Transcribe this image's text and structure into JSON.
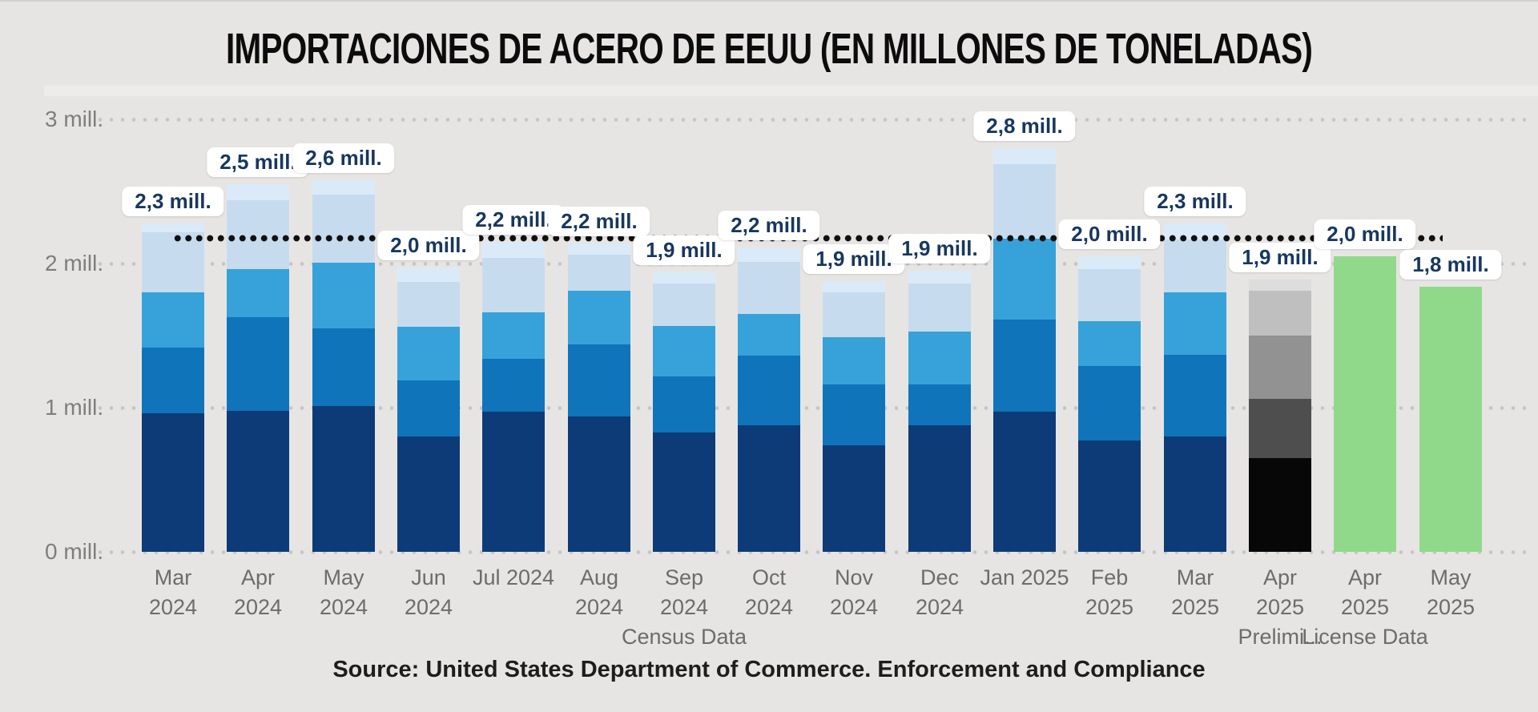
{
  "title": "IMPORTACIONES DE ACERO DE EEUU (EN MILLONES DE TONELADAS)",
  "source": "Source: United States Department of Commerce. Enforcement and Compliance",
  "y_axis": {
    "labels": [
      "3 mill.",
      "2 mill.",
      "1 mill.",
      "0 mill."
    ]
  },
  "colors": {
    "background": "#e7e5e3",
    "title_text": "#0c0c0c",
    "axis_text": "#7f7e7c",
    "x_label_text": "#6d6c6a",
    "pill_text": "#17375e",
    "pill_background": "#ffffff",
    "reference_line": "#101010",
    "gridline": "#c7c5c3"
  },
  "chart_data": {
    "type": "bar",
    "stacked": true,
    "unit": "millones de toneladas",
    "title": "IMPORTACIONES DE ACERO DE EEUU (EN MILLONES DE TONELADAS)",
    "ylim": [
      0,
      3
    ],
    "y_ticks": [
      "0 mill.",
      "1 mill.",
      "2 mill.",
      "3 mill."
    ],
    "grid": "dotted-horizontal",
    "legend": "none",
    "reference_line": {
      "value": 2.18,
      "style": "dotted",
      "color": "#101010"
    },
    "palettes": {
      "blue": [
        "#0d3b77",
        "#0f74ba",
        "#36a2d9",
        "#c6dcee",
        "#daeaf8"
      ],
      "gray": [
        "#070707",
        "#4e4e4e",
        "#929292",
        "#c0bfbf",
        "#dedddd"
      ],
      "green": [
        "#90d98b"
      ]
    },
    "bars": [
      {
        "label_lines": [
          "Mar",
          "2024"
        ],
        "total": 2.3,
        "total_label": "2,3 mill.",
        "palette": "blue",
        "segments": [
          0.96,
          0.46,
          0.38,
          0.42,
          0.06
        ]
      },
      {
        "label_lines": [
          "Apr",
          "2024"
        ],
        "total": 2.5,
        "total_label": "2,5 mill.",
        "palette": "blue",
        "segments": [
          0.98,
          0.65,
          0.33,
          0.48,
          0.11
        ]
      },
      {
        "label_lines": [
          "May",
          "2024"
        ],
        "total": 2.6,
        "total_label": "2,6 mill.",
        "palette": "blue",
        "segments": [
          1.01,
          0.54,
          0.46,
          0.47,
          0.1
        ]
      },
      {
        "label_lines": [
          "Jun",
          "2024"
        ],
        "total": 2.0,
        "total_label": "2,0 mill.",
        "palette": "blue",
        "segments": [
          0.8,
          0.39,
          0.37,
          0.31,
          0.1
        ]
      },
      {
        "label_lines": [
          "Jul 2024"
        ],
        "total": 2.2,
        "total_label": "2,2 mill.",
        "palette": "blue",
        "segments": [
          0.97,
          0.37,
          0.32,
          0.38,
          0.11
        ]
      },
      {
        "label_lines": [
          "Aug",
          "2024"
        ],
        "total": 2.2,
        "total_label": "2,2 mill.",
        "palette": "blue",
        "segments": [
          0.94,
          0.5,
          0.37,
          0.25,
          0.08
        ]
      },
      {
        "label_lines": [
          "Sep",
          "2024",
          "Census Data"
        ],
        "total": 1.9,
        "total_label": "1,9 mill.",
        "palette": "blue",
        "segments": [
          0.83,
          0.39,
          0.35,
          0.29,
          0.08
        ]
      },
      {
        "label_lines": [
          "Oct",
          "2024"
        ],
        "total": 2.2,
        "total_label": "2,2 mill.",
        "palette": "blue",
        "segments": [
          0.88,
          0.48,
          0.29,
          0.36,
          0.1
        ]
      },
      {
        "label_lines": [
          "Nov",
          "2024"
        ],
        "total": 1.9,
        "total_label": "1,9 mill.",
        "palette": "blue",
        "segments": [
          0.74,
          0.42,
          0.33,
          0.31,
          0.08
        ]
      },
      {
        "label_lines": [
          "Dec",
          "2024"
        ],
        "total": 1.9,
        "total_label": "1,9 mill.",
        "palette": "blue",
        "segments": [
          0.88,
          0.28,
          0.37,
          0.33,
          0.09
        ]
      },
      {
        "label_lines": [
          "Jan 2025"
        ],
        "total": 2.8,
        "total_label": "2,8 mill.",
        "palette": "blue",
        "segments": [
          0.97,
          0.64,
          0.56,
          0.52,
          0.11
        ]
      },
      {
        "label_lines": [
          "Feb",
          "2025"
        ],
        "total": 2.0,
        "total_label": "2,0 mill.",
        "palette": "blue",
        "segments": [
          0.77,
          0.52,
          0.31,
          0.36,
          0.09
        ]
      },
      {
        "label_lines": [
          "Mar",
          "2025"
        ],
        "total": 2.3,
        "total_label": "2,3 mill.",
        "palette": "blue",
        "segments": [
          0.8,
          0.57,
          0.43,
          0.37,
          0.11
        ]
      },
      {
        "label_lines": [
          "Apr",
          "2025",
          "Prelimi..."
        ],
        "total": 1.9,
        "total_label": "1,9 mill.",
        "palette": "gray",
        "segments": [
          0.65,
          0.41,
          0.44,
          0.31,
          0.08
        ]
      },
      {
        "label_lines": [
          "Apr",
          "2025",
          "License Data"
        ],
        "total": 2.0,
        "total_label": "2,0 mill.",
        "palette": "green",
        "segments": [
          2.05
        ]
      },
      {
        "label_lines": [
          "May",
          "2025"
        ],
        "total": 1.8,
        "total_label": "1,8 mill.",
        "palette": "green",
        "segments": [
          1.84
        ]
      }
    ]
  }
}
